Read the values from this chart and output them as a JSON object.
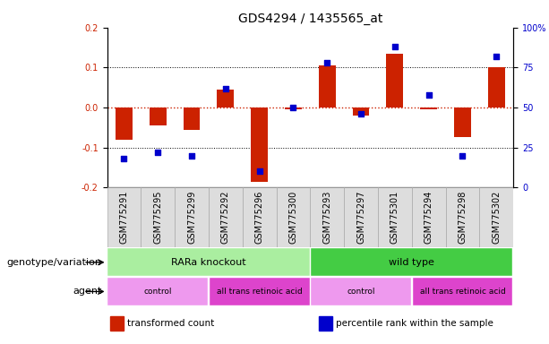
{
  "title": "GDS4294 / 1435565_at",
  "samples": [
    "GSM775291",
    "GSM775295",
    "GSM775299",
    "GSM775292",
    "GSM775296",
    "GSM775300",
    "GSM775293",
    "GSM775297",
    "GSM775301",
    "GSM775294",
    "GSM775298",
    "GSM775302"
  ],
  "transformed_count": [
    -0.08,
    -0.045,
    -0.055,
    0.045,
    -0.185,
    -0.005,
    0.105,
    -0.02,
    0.135,
    -0.005,
    -0.075,
    0.1
  ],
  "percentile_rank": [
    18,
    22,
    20,
    62,
    10,
    50,
    78,
    46,
    88,
    58,
    20,
    82
  ],
  "ylim_left": [
    -0.2,
    0.2
  ],
  "ylim_right": [
    0,
    100
  ],
  "yticks_left": [
    -0.2,
    -0.1,
    0.0,
    0.1,
    0.2
  ],
  "yticks_right": [
    0,
    25,
    50,
    75,
    100
  ],
  "ytick_labels_right": [
    "0",
    "25",
    "50",
    "75",
    "100%"
  ],
  "bar_color": "#cc2200",
  "dot_color": "#0000cc",
  "zeroline_color": "#cc2200",
  "dotted_line_color": "#000000",
  "genotype_groups": [
    {
      "label": "RARa knockout",
      "start": 0,
      "end": 5,
      "color": "#aaeea0"
    },
    {
      "label": "wild type",
      "start": 6,
      "end": 11,
      "color": "#44cc44"
    }
  ],
  "agent_groups": [
    {
      "label": "control",
      "start": 0,
      "end": 2,
      "color": "#ee99ee"
    },
    {
      "label": "all trans retinoic acid",
      "start": 3,
      "end": 5,
      "color": "#dd44cc"
    },
    {
      "label": "control",
      "start": 6,
      "end": 8,
      "color": "#ee99ee"
    },
    {
      "label": "all trans retinoic acid",
      "start": 9,
      "end": 11,
      "color": "#dd44cc"
    }
  ],
  "legend_items": [
    {
      "label": "transformed count",
      "color": "#cc2200"
    },
    {
      "label": "percentile rank within the sample",
      "color": "#0000cc"
    }
  ],
  "bar_width": 0.5,
  "title_fontsize": 10,
  "tick_fontsize": 7,
  "label_fontsize": 8,
  "annotation_fontsize": 8
}
